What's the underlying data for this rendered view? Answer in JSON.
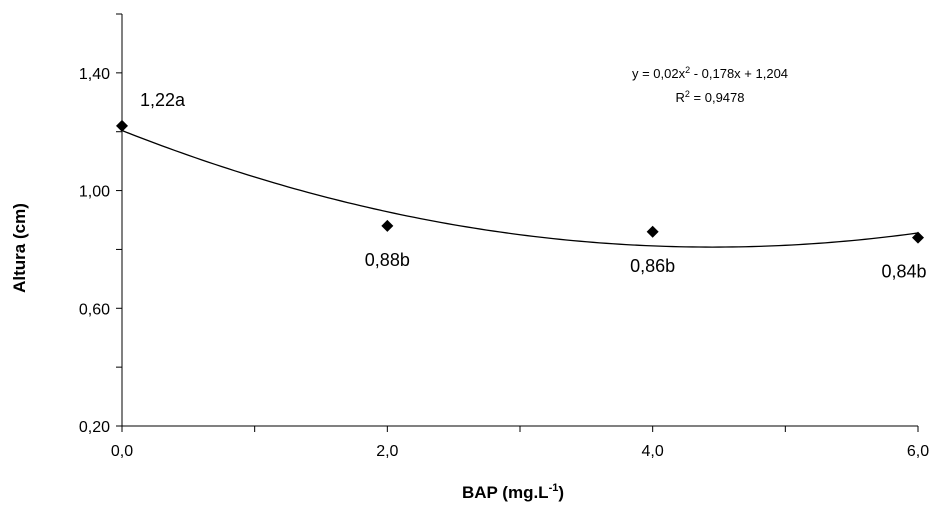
{
  "chart_data": {
    "type": "scatter",
    "x": [
      0.0,
      2.0,
      4.0,
      6.0
    ],
    "y": [
      1.22,
      0.88,
      0.86,
      0.84
    ],
    "point_labels": [
      "1,22a",
      "0,88b",
      "0,86b",
      "0,84b"
    ],
    "x_tick_labels": [
      "0,0",
      "2,0",
      "4,0",
      "6,0"
    ],
    "y_tick_labels": [
      "0,20",
      "0,60",
      "1,00",
      "1,40"
    ],
    "y_ticks": [
      0.2,
      0.6,
      1.0,
      1.4
    ],
    "x_ticks": [
      0,
      2,
      4,
      6
    ],
    "xlabel_main": "BAP (mg.L",
    "xlabel_sup": "-1",
    "xlabel_end": ")",
    "ylabel": "Altura (cm)",
    "xlim": [
      0,
      6
    ],
    "ylim": [
      0.2,
      1.6
    ],
    "trendline": {
      "type": "polynomial",
      "coefficients": [
        0.02,
        -0.178,
        1.204
      ],
      "equation_parts": [
        "y = 0,02x",
        "2",
        " - 0,178x + 1,204"
      ],
      "r2_parts": [
        "R",
        "2",
        " = 0,9478"
      ]
    },
    "marker": "diamond",
    "grid": false,
    "legend": "none",
    "color": "#000000"
  }
}
